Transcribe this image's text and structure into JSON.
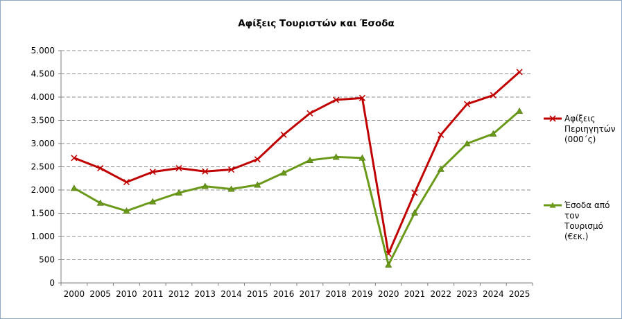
{
  "chart_data": {
    "type": "line",
    "title": "Αφίξεις Τουριστών και Έσοδα",
    "categories": [
      "2000",
      "2005",
      "2010",
      "2011",
      "2012",
      "2013",
      "2014",
      "2015",
      "2016",
      "2017",
      "2018",
      "2019",
      "2020",
      "2021",
      "2022",
      "2023",
      "2024",
      "2025"
    ],
    "ylim": [
      0,
      5000
    ],
    "yticks": [
      0,
      500,
      1000,
      1500,
      2000,
      2500,
      3000,
      3500,
      4000,
      4500,
      5000
    ],
    "ytick_labels": [
      "0",
      "500",
      "1.000",
      "1.500",
      "2.000",
      "2.500",
      "3.000",
      "3.500",
      "4.000",
      "4.500",
      "5.000"
    ],
    "grid": true,
    "legend_position": "right",
    "series": [
      {
        "name": "Αφίξεις Περιηγητών (000΄ς)",
        "legend_lines": [
          "Αφίξεις",
          "Περιηγητών",
          "(000΄ς)"
        ],
        "color": "#c00000",
        "marker": "x",
        "values": [
          2690,
          2470,
          2170,
          2390,
          2470,
          2400,
          2440,
          2660,
          3190,
          3650,
          3940,
          3980,
          630,
          1940,
          3190,
          3850,
          4040,
          4540
        ]
      },
      {
        "name": "Έσοδα από τον Τουρισμό (€εκ.)",
        "legend_lines": [
          "Έσοδα από",
          "τον",
          "Τουρισμό",
          "(€εκ.)"
        ],
        "color": "#6b9a1a",
        "marker": "triangle",
        "values": [
          2040,
          1720,
          1550,
          1750,
          1940,
          2080,
          2020,
          2110,
          2370,
          2640,
          2710,
          2690,
          390,
          1510,
          2450,
          3000,
          3210,
          3700
        ]
      }
    ]
  }
}
